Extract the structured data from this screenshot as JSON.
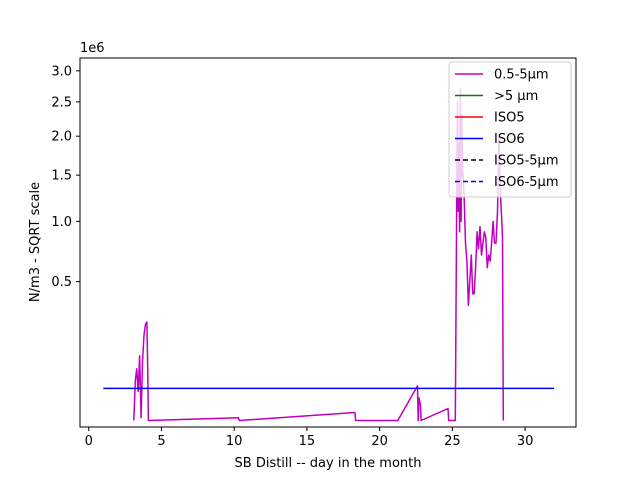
{
  "chart_data": {
    "type": "line",
    "title": "",
    "xlabel": "SB Distill -- day in the month",
    "ylabel": "N/m3 - SQRT scale",
    "y_scale": "sqrt",
    "y_offset_text": "1e6",
    "xlim": [
      -0.6,
      33.5
    ],
    "ylim": [
      0,
      3.22
    ],
    "x_ticks": [
      0,
      5,
      10,
      15,
      20,
      25,
      30
    ],
    "x_tick_labels": [
      "0",
      "5",
      "10",
      "15",
      "20",
      "25",
      "30"
    ],
    "y_ticks": [
      0.5,
      1.0,
      1.5,
      2.0,
      2.5,
      3.0
    ],
    "y_tick_labels": [
      "0.5",
      "1.0",
      "1.5",
      "2.0",
      "2.5",
      "3.0"
    ],
    "grid": false,
    "legend_position": "top-right",
    "series": [
      {
        "name": "0.5-5µm",
        "color": "#bf00bf",
        "style": "solid",
        "x": [
          3.1,
          3.2,
          3.3,
          3.4,
          3.5,
          3.6,
          3.7,
          3.8,
          3.9,
          4.0,
          4.05,
          4.1,
          10.3,
          10.35,
          18.3,
          18.35,
          21.2,
          21.25,
          22.6,
          22.65,
          22.7,
          22.8,
          22.85,
          24.7,
          24.75,
          25.2,
          25.3,
          25.35,
          25.4,
          25.45,
          25.5,
          25.55,
          25.6,
          25.65,
          25.7,
          25.8,
          25.9,
          26.0,
          26.1,
          26.2,
          26.3,
          26.4,
          26.5,
          26.6,
          26.7,
          26.8,
          26.9,
          27.0,
          27.1,
          27.2,
          27.3,
          27.4,
          27.5,
          27.6,
          27.7,
          27.8,
          27.9,
          28.0,
          28.1,
          28.2,
          28.3,
          28.4,
          28.45,
          28.5
        ],
        "y": [
          0.001,
          0.05,
          0.08,
          0.03,
          0.12,
          0.002,
          0.1,
          0.2,
          0.25,
          0.26,
          0.1,
          0.001,
          0.002,
          0.001,
          0.005,
          0.001,
          0.001,
          0.001,
          0.04,
          0.001,
          0.02,
          0.012,
          0.001,
          0.008,
          0.001,
          0.001,
          1.2,
          2.5,
          1.1,
          1.9,
          0.9,
          2.7,
          1.0,
          2.3,
          1.6,
          1.3,
          0.8,
          0.65,
          0.35,
          0.5,
          0.7,
          0.42,
          0.42,
          0.6,
          0.9,
          0.75,
          0.95,
          0.7,
          0.8,
          0.9,
          0.85,
          0.6,
          0.7,
          0.65,
          0.8,
          1.0,
          0.8,
          0.8,
          1.1,
          2.0,
          1.3,
          1.0,
          0.85,
          0.001
        ]
      },
      {
        "name": ">5 µm",
        "color": "#008000",
        "style": "solid",
        "x": [],
        "y": []
      },
      {
        "name": "ISO5",
        "color": "#ff0000",
        "style": "solid",
        "x": [],
        "y": []
      },
      {
        "name": "ISO6",
        "color": "#0000ff",
        "style": "solid",
        "x": [
          1,
          32
        ],
        "y": [
          0.0352,
          0.0352
        ]
      },
      {
        "name": "ISO5-5µm",
        "color": "#000000",
        "style": "dashed",
        "x": [],
        "y": []
      },
      {
        "name": "ISO6-5µm",
        "color": "#0000ff",
        "style": "dashed",
        "x": [],
        "y": []
      }
    ]
  }
}
